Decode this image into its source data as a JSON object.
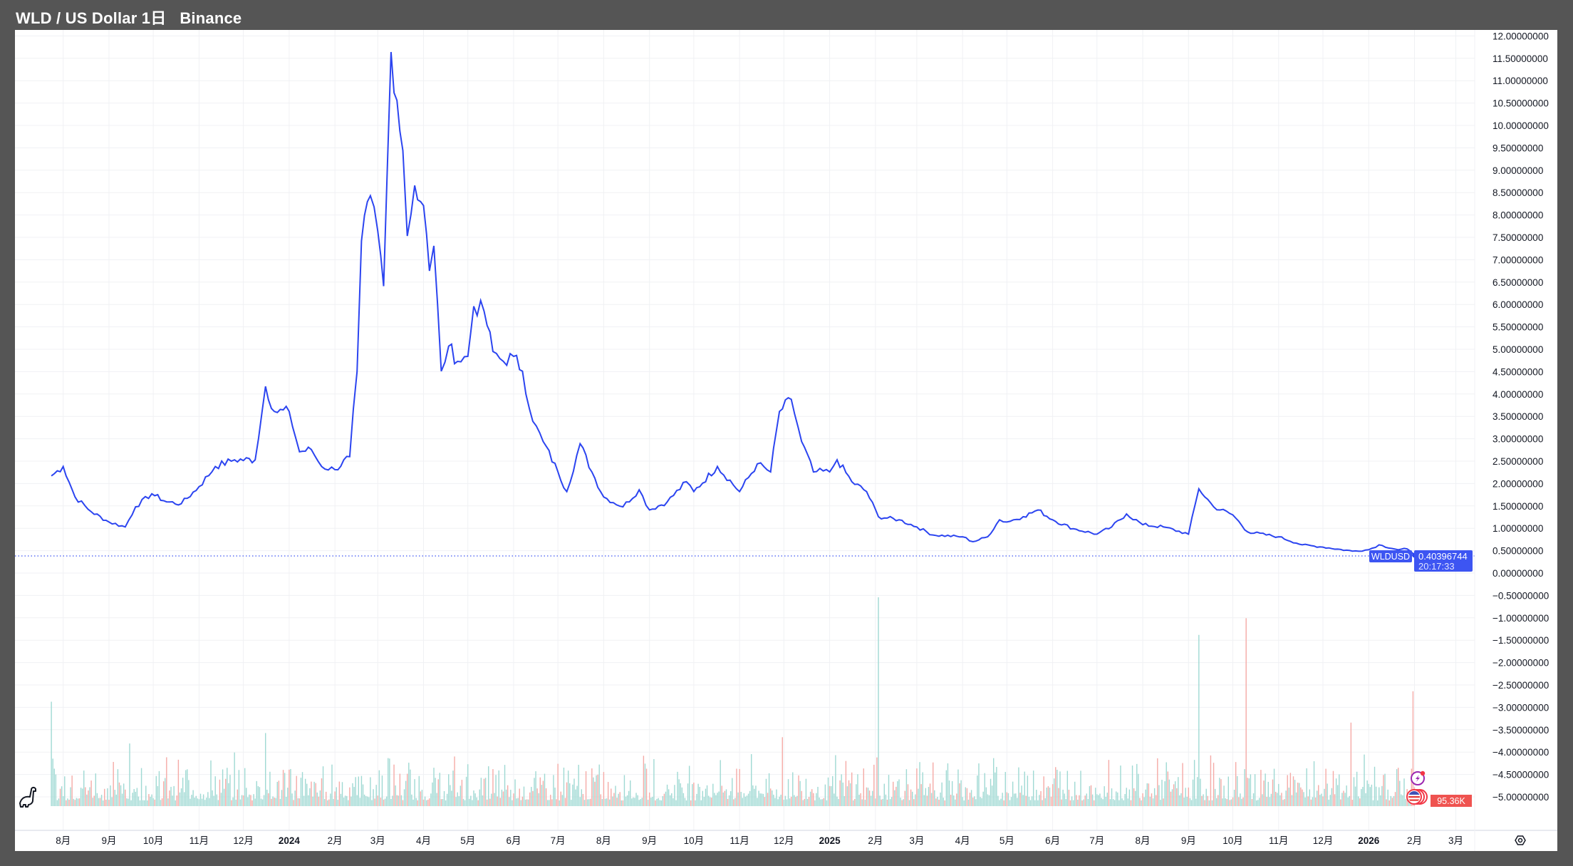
{
  "header": {
    "symbol": "WLD / US Dollar",
    "interval": "1日",
    "exchange": "Binance"
  },
  "price_label": {
    "ticker": "WLDUSD",
    "price": "0.40396744",
    "countdown": "20:17:33"
  },
  "volume_label": "95.36K",
  "colors": {
    "line": "#2b44f0",
    "label_bg": "#3d55f2",
    "up_volume": "#9fd9d3",
    "down_volume": "#f5aaa6",
    "volume_label_bg": "#ef5350"
  },
  "icons": [
    "dinosaur-logo-icon",
    "lightning-event-icon",
    "us-flag-event-icon",
    "settings-icon"
  ],
  "chart_data": {
    "type": "line",
    "title": "WLD / US Dollar 1日 Binance",
    "ylim": [
      -5.0,
      12.0
    ],
    "grid": true,
    "y_ticks": [
      "12.00000000",
      "11.50000000",
      "11.00000000",
      "10.50000000",
      "10.00000000",
      "9.50000000",
      "9.00000000",
      "8.50000000",
      "8.00000000",
      "7.50000000",
      "7.00000000",
      "6.50000000",
      "6.00000000",
      "5.50000000",
      "5.00000000",
      "4.50000000",
      "4.00000000",
      "3.50000000",
      "3.00000000",
      "2.50000000",
      "2.00000000",
      "1.50000000",
      "1.00000000",
      "0.50000000",
      "0.00000000",
      "−0.50000000",
      "−1.00000000",
      "−1.50000000",
      "−2.00000000",
      "−2.50000000",
      "−3.00000000",
      "−3.50000000",
      "−4.00000000",
      "−4.50000000",
      "−5.00000000"
    ],
    "x_ticks": [
      {
        "label": "8月",
        "date": "2023-08-01"
      },
      {
        "label": "9月",
        "date": "2023-09-01"
      },
      {
        "label": "10月",
        "date": "2023-10-01"
      },
      {
        "label": "11月",
        "date": "2023-11-01"
      },
      {
        "label": "12月",
        "date": "2023-12-01"
      },
      {
        "label": "2024",
        "date": "2024-01-01",
        "year": true
      },
      {
        "label": "2月",
        "date": "2024-02-01"
      },
      {
        "label": "3月",
        "date": "2024-03-01"
      },
      {
        "label": "4月",
        "date": "2024-04-01"
      },
      {
        "label": "5月",
        "date": "2024-05-01"
      },
      {
        "label": "6月",
        "date": "2024-06-01"
      },
      {
        "label": "7月",
        "date": "2024-07-01"
      },
      {
        "label": "8月",
        "date": "2024-08-01"
      },
      {
        "label": "9月",
        "date": "2024-09-01"
      },
      {
        "label": "10月",
        "date": "2024-10-01"
      },
      {
        "label": "11月",
        "date": "2024-11-01"
      },
      {
        "label": "12月",
        "date": "2024-12-01"
      },
      {
        "label": "2025",
        "date": "2025-01-01",
        "year": true
      },
      {
        "label": "2月",
        "date": "2025-02-01"
      },
      {
        "label": "3月",
        "date": "2025-03-01"
      },
      {
        "label": "4月",
        "date": "2025-04-01"
      },
      {
        "label": "5月",
        "date": "2025-05-01"
      },
      {
        "label": "6月",
        "date": "2025-06-01"
      },
      {
        "label": "7月",
        "date": "2025-07-01"
      },
      {
        "label": "8月",
        "date": "2025-08-01"
      },
      {
        "label": "9月",
        "date": "2025-09-01"
      },
      {
        "label": "10月",
        "date": "2025-10-01"
      },
      {
        "label": "11月",
        "date": "2025-11-01"
      },
      {
        "label": "12月",
        "date": "2025-12-01"
      },
      {
        "label": "2026",
        "date": "2026-01-01",
        "year": true
      },
      {
        "label": "2月",
        "date": "2026-02-01"
      },
      {
        "label": "3月",
        "date": "2026-03-01"
      }
    ],
    "series": [
      {
        "points": [
          [
            "2023-07-24",
            2.17
          ],
          [
            "2023-08-01",
            2.38
          ],
          [
            "2023-08-09",
            1.7
          ],
          [
            "2023-08-20",
            1.37
          ],
          [
            "2023-09-01",
            1.14
          ],
          [
            "2023-09-12",
            1.03
          ],
          [
            "2023-09-19",
            1.48
          ],
          [
            "2023-09-30",
            1.77
          ],
          [
            "2023-10-10",
            1.59
          ],
          [
            "2023-10-20",
            1.55
          ],
          [
            "2023-11-01",
            1.93
          ],
          [
            "2023-11-12",
            2.38
          ],
          [
            "2023-11-25",
            2.53
          ],
          [
            "2023-12-09",
            2.53
          ],
          [
            "2023-12-16",
            4.17
          ],
          [
            "2023-12-22",
            3.61
          ],
          [
            "2024-01-01",
            3.61
          ],
          [
            "2024-01-08",
            2.71
          ],
          [
            "2024-01-16",
            2.76
          ],
          [
            "2024-01-23",
            2.38
          ],
          [
            "2024-02-01",
            2.31
          ],
          [
            "2024-02-11",
            2.6
          ],
          [
            "2024-02-16",
            4.5
          ],
          [
            "2024-02-19",
            7.42
          ],
          [
            "2024-02-25",
            8.43
          ],
          [
            "2024-03-01",
            7.65
          ],
          [
            "2024-03-05",
            6.41
          ],
          [
            "2024-03-10",
            11.64
          ],
          [
            "2024-03-14",
            10.56
          ],
          [
            "2024-03-18",
            9.44
          ],
          [
            "2024-03-21",
            7.53
          ],
          [
            "2024-03-26",
            8.66
          ],
          [
            "2024-04-01",
            8.21
          ],
          [
            "2024-04-05",
            6.75
          ],
          [
            "2024-04-08",
            7.31
          ],
          [
            "2024-04-13",
            4.51
          ],
          [
            "2024-04-18",
            5.07
          ],
          [
            "2024-04-24",
            4.73
          ],
          [
            "2024-05-01",
            4.84
          ],
          [
            "2024-05-05",
            5.96
          ],
          [
            "2024-05-12",
            5.85
          ],
          [
            "2024-05-18",
            4.95
          ],
          [
            "2024-05-25",
            4.73
          ],
          [
            "2024-06-01",
            4.84
          ],
          [
            "2024-06-07",
            4.51
          ],
          [
            "2024-06-14",
            3.39
          ],
          [
            "2024-06-21",
            2.94
          ],
          [
            "2024-07-01",
            2.26
          ],
          [
            "2024-07-07",
            1.82
          ],
          [
            "2024-07-16",
            2.89
          ],
          [
            "2024-07-24",
            2.26
          ],
          [
            "2024-08-01",
            1.7
          ],
          [
            "2024-08-14",
            1.48
          ],
          [
            "2024-08-25",
            1.86
          ],
          [
            "2024-09-01",
            1.41
          ],
          [
            "2024-09-13",
            1.59
          ],
          [
            "2024-09-26",
            2.04
          ],
          [
            "2024-10-01",
            1.82
          ],
          [
            "2024-10-17",
            2.38
          ],
          [
            "2024-11-01",
            1.82
          ],
          [
            "2024-11-13",
            2.44
          ],
          [
            "2024-11-22",
            2.26
          ],
          [
            "2024-11-28",
            3.61
          ],
          [
            "2024-12-06",
            3.88
          ],
          [
            "2024-12-13",
            2.94
          ],
          [
            "2024-12-21",
            2.26
          ],
          [
            "2025-01-01",
            2.26
          ],
          [
            "2025-01-06",
            2.53
          ],
          [
            "2025-01-16",
            2.04
          ],
          [
            "2025-01-26",
            1.82
          ],
          [
            "2025-02-03",
            1.26
          ],
          [
            "2025-02-17",
            1.19
          ],
          [
            "2025-03-01",
            1.03
          ],
          [
            "2025-03-12",
            0.85
          ],
          [
            "2025-04-01",
            0.81
          ],
          [
            "2025-04-08",
            0.7
          ],
          [
            "2025-04-18",
            0.81
          ],
          [
            "2025-04-26",
            1.19
          ],
          [
            "2025-05-01",
            1.14
          ],
          [
            "2025-05-12",
            1.26
          ],
          [
            "2025-05-22",
            1.41
          ],
          [
            "2025-06-01",
            1.19
          ],
          [
            "2025-06-15",
            0.99
          ],
          [
            "2025-07-01",
            0.87
          ],
          [
            "2025-07-11",
            1.03
          ],
          [
            "2025-07-21",
            1.32
          ],
          [
            "2025-08-01",
            1.08
          ],
          [
            "2025-08-15",
            1.03
          ],
          [
            "2025-09-01",
            0.87
          ],
          [
            "2025-09-08",
            1.88
          ],
          [
            "2025-09-18",
            1.48
          ],
          [
            "2025-10-01",
            1.3
          ],
          [
            "2025-10-11",
            0.92
          ],
          [
            "2025-11-01",
            0.81
          ],
          [
            "2025-11-17",
            0.63
          ],
          [
            "2025-12-01",
            0.58
          ],
          [
            "2025-12-21",
            0.49
          ],
          [
            "2026-01-01",
            0.52
          ],
          [
            "2026-01-08",
            0.63
          ],
          [
            "2026-01-21",
            0.52
          ],
          [
            "2026-01-27",
            0.54
          ],
          [
            "2026-02-01",
            0.4
          ]
        ]
      }
    ],
    "volume_spikes_relative": [
      {
        "date": "2023-07-24",
        "value": 0.5,
        "up": true
      },
      {
        "date": "2023-09-15",
        "value": 0.3,
        "up": true
      },
      {
        "date": "2023-12-16",
        "value": 0.35,
        "up": true
      },
      {
        "date": "2024-03-08",
        "value": 0.23,
        "up": true
      },
      {
        "date": "2024-11-30",
        "value": 0.33,
        "up": false
      },
      {
        "date": "2025-02-03",
        "value": 1.0,
        "up": true
      },
      {
        "date": "2025-09-08",
        "value": 0.82,
        "up": true
      },
      {
        "date": "2025-10-10",
        "value": 0.9,
        "up": false
      },
      {
        "date": "2025-12-20",
        "value": 0.4,
        "up": false
      },
      {
        "date": "2026-01-31",
        "value": 0.55,
        "up": false
      }
    ]
  }
}
